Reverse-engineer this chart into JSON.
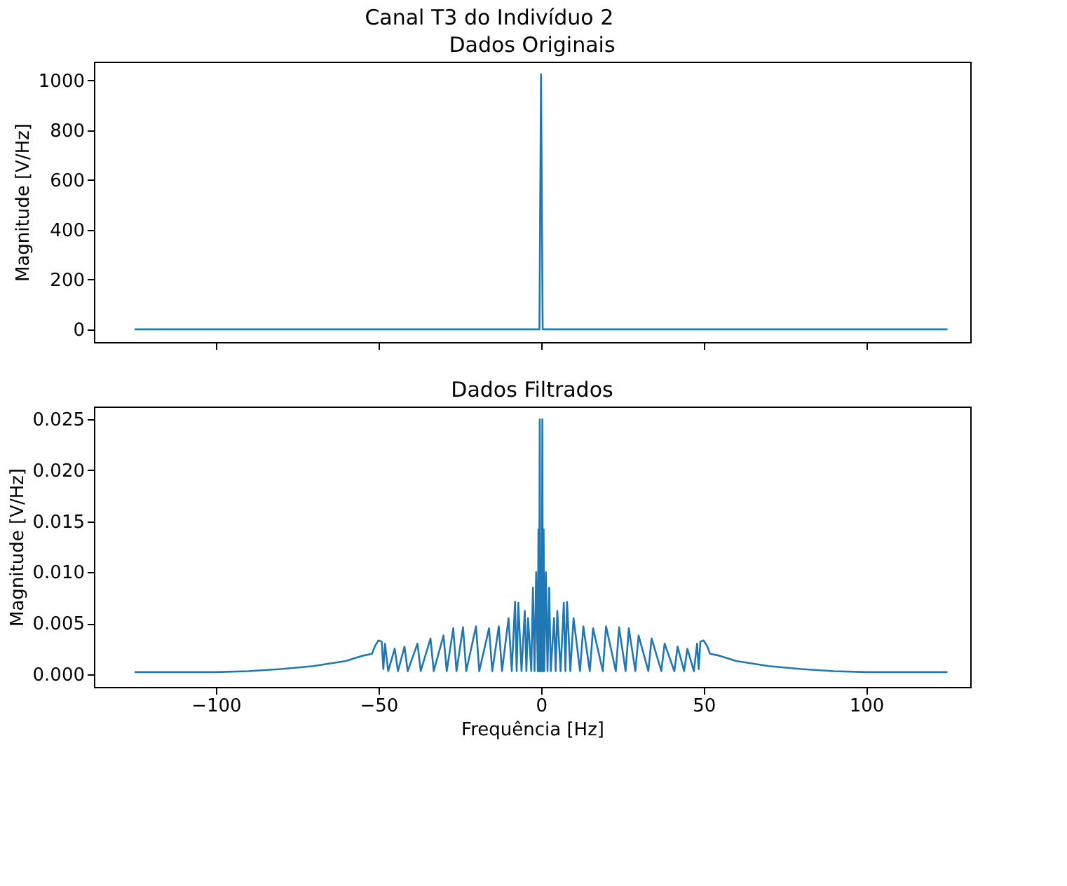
{
  "chart_data": [
    {
      "type": "line",
      "title": "Dados Originais",
      "ylabel": "Magnitude [V/Hz]",
      "annotations": [
        "Canal T3 do Indivíduo 2"
      ],
      "x": [
        -125,
        -100,
        -50,
        -0.5,
        0,
        0.5,
        50,
        100,
        125
      ],
      "series": [
        {
          "color": "#1f77b4",
          "values": [
            0,
            0,
            0,
            0,
            1025,
            0,
            0,
            0,
            0
          ]
        }
      ],
      "xlim": [
        -137.5,
        132
      ],
      "xticks": [
        -100,
        -50,
        0,
        50,
        100
      ],
      "ylim": [
        -51,
        1076
      ],
      "yticks": [
        0,
        200,
        400,
        600,
        800,
        1000
      ],
      "tick_labels": "y",
      "grid": false
    },
    {
      "type": "line",
      "title": "Dados Filtrados",
      "xlabel": "Frequência [Hz]",
      "ylabel": "Magnitude [V/Hz]",
      "x": [
        -125,
        -100,
        -90,
        -80,
        -70,
        -60,
        -55,
        -52,
        -51,
        -50,
        -49,
        -48.5,
        -48,
        -47,
        -45,
        -44,
        -42,
        -41,
        -38,
        -37,
        -34,
        -33,
        -30,
        -29,
        -27,
        -26,
        -24,
        -23,
        -20,
        -19,
        -16,
        -15,
        -13,
        -12,
        -10,
        -9,
        -8,
        -7.5,
        -7,
        -6,
        -5,
        -4.5,
        -4,
        -3,
        -2.5,
        -2,
        -1.5,
        -1,
        -0.8,
        -0.6,
        -0.4,
        -0.2,
        0,
        0.2,
        0.4,
        0.6,
        0.8,
        1,
        1.5,
        2,
        2.5,
        3,
        4,
        4.5,
        5,
        6,
        7,
        7.5,
        8,
        9,
        10,
        12,
        13,
        15,
        16,
        19,
        20,
        23,
        24,
        26,
        27,
        29,
        30,
        33,
        34,
        37,
        38,
        41,
        42,
        44,
        45,
        47,
        48,
        48.5,
        49,
        50,
        51,
        52,
        55,
        60,
        70,
        80,
        90,
        100,
        125
      ],
      "series": [
        {
          "color": "#1f77b4",
          "values": [
            0.0002,
            0.0002,
            0.0003,
            0.0005,
            0.0008,
            0.0013,
            0.0018,
            0.002,
            0.0028,
            0.0033,
            0.0032,
            0.0005,
            0.003,
            0.0003,
            0.0025,
            0.0003,
            0.0027,
            0.0003,
            0.003,
            0.0003,
            0.0035,
            0.0003,
            0.0038,
            0.0003,
            0.0045,
            0.0003,
            0.0046,
            0.0003,
            0.0047,
            0.0003,
            0.0045,
            0.0003,
            0.0047,
            0.0003,
            0.0055,
            0.0003,
            0.0071,
            0.0003,
            0.007,
            0.0003,
            0.0062,
            0.0003,
            0.0055,
            0.0003,
            0.0085,
            0.0003,
            0.01,
            0.0003,
            0.0142,
            0.0003,
            0.025,
            0.0003,
            0.0115,
            0.0003,
            0.025,
            0.0003,
            0.0142,
            0.0003,
            0.01,
            0.0003,
            0.0085,
            0.0003,
            0.0055,
            0.0003,
            0.0062,
            0.0003,
            0.007,
            0.0003,
            0.0071,
            0.0003,
            0.0055,
            0.0003,
            0.0047,
            0.0003,
            0.0045,
            0.0003,
            0.0047,
            0.0003,
            0.0046,
            0.0003,
            0.0045,
            0.0003,
            0.0038,
            0.0003,
            0.0035,
            0.0003,
            0.003,
            0.0003,
            0.0027,
            0.0003,
            0.0025,
            0.0003,
            0.003,
            0.0005,
            0.0032,
            0.0033,
            0.0028,
            0.002,
            0.0018,
            0.0013,
            0.0008,
            0.0005,
            0.0003,
            0.0002,
            0.0002
          ]
        }
      ],
      "xlim": [
        -137.5,
        132
      ],
      "xticks": [
        {
          "value": -100,
          "label": "−100"
        },
        {
          "value": -50,
          "label": "−50"
        },
        0,
        50,
        100
      ],
      "ylim": [
        -0.00125,
        0.02625
      ],
      "yticks": [
        {
          "value": 0,
          "label": "0.000"
        },
        {
          "value": 0.005,
          "label": "0.005"
        },
        {
          "value": 0.01,
          "label": "0.010"
        },
        {
          "value": 0.015,
          "label": "0.015"
        },
        {
          "value": 0.02,
          "label": "0.020"
        },
        {
          "value": 0.025,
          "label": "0.025"
        }
      ],
      "grid": false
    }
  ]
}
